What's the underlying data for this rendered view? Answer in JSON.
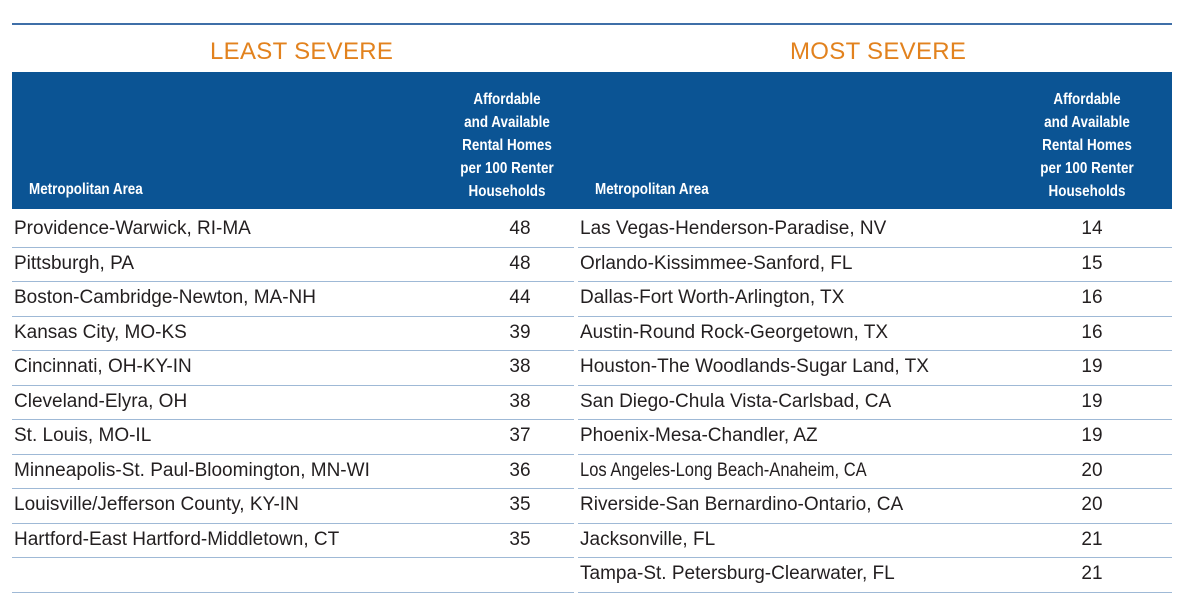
{
  "titles": {
    "left": "LEAST SEVERE",
    "right": "MOST SEVERE"
  },
  "headers": {
    "metro_area": "Metropolitan Area",
    "value": "Affordable\nand Available\nRental Homes\nper 100 Renter\nHouseholds"
  },
  "colors": {
    "title": "#e2821e",
    "header_bg": "#0b5494",
    "header_text": "#ffffff",
    "rule": "#9fb9d6"
  },
  "least_severe": [
    {
      "area": "Providence-Warwick, RI-MA",
      "value": "48"
    },
    {
      "area": "Pittsburgh, PA",
      "value": "48"
    },
    {
      "area": "Boston-Cambridge-Newton, MA-NH",
      "value": "44"
    },
    {
      "area": "Kansas City, MO-KS",
      "value": "39"
    },
    {
      "area": "Cincinnati, OH-KY-IN",
      "value": "38"
    },
    {
      "area": "Cleveland-Elyra, OH",
      "value": "38"
    },
    {
      "area": "St. Louis, MO-IL",
      "value": "37"
    },
    {
      "area": "Minneapolis-St. Paul-Bloomington, MN-WI",
      "value": "36"
    },
    {
      "area": "Louisville/Jefferson County, KY-IN",
      "value": "35"
    },
    {
      "area": "Hartford-East Hartford-Middletown, CT",
      "value": "35"
    }
  ],
  "most_severe": [
    {
      "area": "Las Vegas-Henderson-Paradise, NV",
      "value": "14"
    },
    {
      "area": "Orlando-Kissimmee-Sanford, FL",
      "value": "15"
    },
    {
      "area": "Dallas-Fort Worth-Arlington, TX",
      "value": "16"
    },
    {
      "area": "Austin-Round Rock-Georgetown, TX",
      "value": "16"
    },
    {
      "area": "Houston-The Woodlands-Sugar Land, TX",
      "value": "19"
    },
    {
      "area": "San Diego-Chula Vista-Carlsbad, CA",
      "value": "19"
    },
    {
      "area": "Phoenix-Mesa-Chandler, AZ",
      "value": "19"
    },
    {
      "area": "Los Angeles-Long Beach-Anaheim, CA",
      "value": "20"
    },
    {
      "area": "Riverside-San Bernardino-Ontario, CA",
      "value": "20"
    },
    {
      "area": "Jacksonville, FL",
      "value": "21"
    },
    {
      "area": "Tampa-St. Petersburg-Clearwater, FL",
      "value": "21"
    }
  ]
}
